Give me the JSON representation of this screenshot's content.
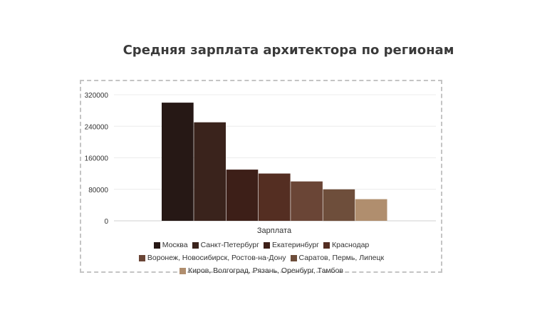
{
  "chart_data": {
    "type": "bar",
    "title": "Средняя зарплата архитектора по регионам",
    "xlabel": "Зарплата",
    "ylabel": "",
    "ylim": [
      0,
      320000
    ],
    "yticks": [
      "0",
      "80000",
      "160000",
      "240000",
      "320000"
    ],
    "categories": [
      "Зарплата"
    ],
    "grid": true,
    "legend_position": "bottom",
    "series": [
      {
        "name": "Москва",
        "values": [
          300000
        ],
        "color": "#261815"
      },
      {
        "name": "Санкт-Петербург",
        "values": [
          250000
        ],
        "color": "#3a231c"
      },
      {
        "name": "Екатеринбург",
        "values": [
          130000
        ],
        "color": "#3d1f18"
      },
      {
        "name": "Краснодар",
        "values": [
          120000
        ],
        "color": "#542e22"
      },
      {
        "name": "Воронеж, Новосибирск, Ростов-на-Дону",
        "values": [
          100000
        ],
        "color": "#6a4536"
      },
      {
        "name": "Саратов, Пермь, Липецк",
        "values": [
          80000
        ],
        "color": "#6e4e3b"
      },
      {
        "name": "Киров, Волгоград, Рязань, Оренбург, Тамбов",
        "values": [
          55000
        ],
        "color": "#b08e6e"
      }
    ]
  }
}
